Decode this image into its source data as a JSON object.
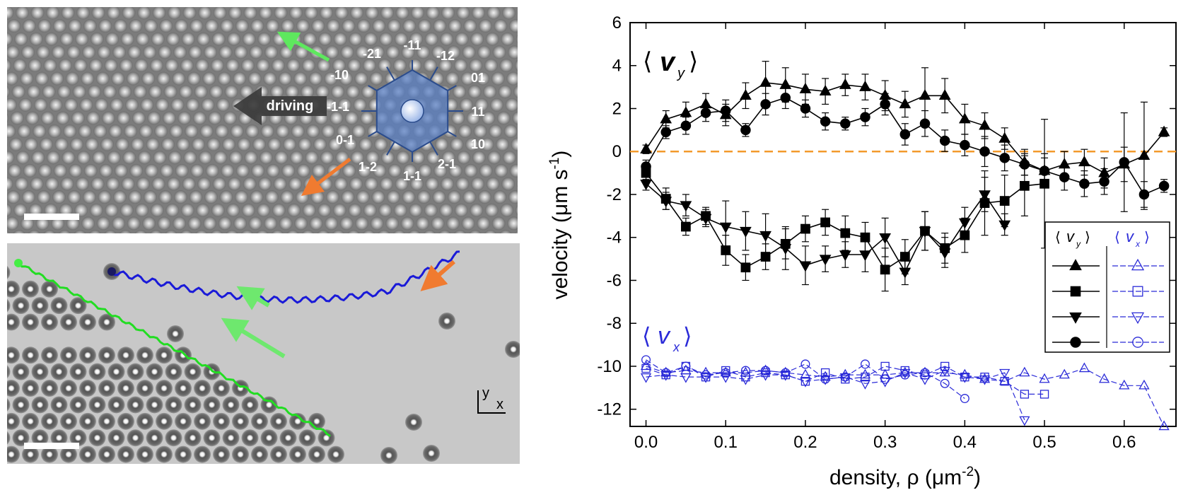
{
  "top_panel": {
    "driving_label": "driving",
    "direction_labels": [
      {
        "text": "-11"
      },
      {
        "text": "-12"
      },
      {
        "text": "01"
      },
      {
        "text": "11"
      },
      {
        "text": "10"
      },
      {
        "text": "2-1"
      },
      {
        "text": "1-1"
      },
      {
        "text": "1-2"
      },
      {
        "text": "0-1"
      },
      {
        "text": "-1-1"
      },
      {
        "text": "-10"
      },
      {
        "text": "-21"
      }
    ],
    "colors": {
      "green_arrow": "#5ee85e",
      "orange_arrow": "#f07b30",
      "hexagon": "#4a6fb0"
    }
  },
  "bottom_panel": {
    "axis_y": "y",
    "axis_x": "x",
    "colors": {
      "blue_track": "#1a1ad8",
      "green_track": "#22dd22"
    }
  },
  "chart_data": {
    "type": "scatter",
    "xlabel": "density, ρ (μm",
    "xlabel_sup": "-2",
    "xlabel_end": ")",
    "ylabel": "velocity (μm s",
    "ylabel_sup": "-1",
    "ylabel_end": ")",
    "xlim": [
      -0.02,
      0.665
    ],
    "ylim": [
      -12.8,
      6
    ],
    "xticks": [
      0.0,
      0.1,
      0.2,
      0.3,
      0.4,
      0.5,
      0.6
    ],
    "xtick_labels": [
      "0.0",
      "0.1",
      "0.2",
      "0.3",
      "0.4",
      "0.5",
      "0.6"
    ],
    "yticks": [
      6,
      4,
      2,
      0,
      -2,
      -4,
      -6,
      -8,
      -10,
      -12
    ],
    "ytick_labels": [
      "6",
      "4",
      "2",
      "0",
      "-2",
      "-4",
      "-6",
      "-8",
      "-10",
      "-12"
    ],
    "zero_line_color": "#f39a2c",
    "annotation_vy": "v",
    "annotation_vy_sub": "y",
    "annotation_vx": "v",
    "annotation_vx_sub": "x",
    "legend": {
      "placement": "right",
      "col1": "v",
      "col1_sub": "y",
      "col2": "v",
      "col2_sub": "x"
    },
    "vy_series": [
      {
        "marker": "triangle-up",
        "x": [
          0,
          0.025,
          0.05,
          0.075,
          0.1,
          0.125,
          0.15,
          0.175,
          0.2,
          0.225,
          0.25,
          0.275,
          0.3,
          0.325,
          0.35,
          0.375,
          0.4,
          0.425,
          0.45,
          0.475,
          0.5,
          0.525,
          0.55,
          0.575,
          0.6,
          0.625,
          0.65
        ],
        "y": [
          0.1,
          1.5,
          1.8,
          2.2,
          1.7,
          2.6,
          3.2,
          3.1,
          2.9,
          2.8,
          3.1,
          3.0,
          2.6,
          2.2,
          2.6,
          2.6,
          1.5,
          1.2,
          0.6,
          -0.5,
          -0.9,
          -0.6,
          -0.5,
          -1.0,
          -0.6,
          -0.2,
          0.9
        ],
        "err": [
          0.2,
          0.4,
          0.5,
          0.5,
          0.5,
          0.6,
          1.0,
          0.8,
          0.7,
          0.6,
          0.5,
          0.6,
          0.7,
          0.6,
          1.3,
          0.8,
          0.7,
          0.6,
          0.5,
          0.6,
          0.8,
          0.6,
          0.6,
          0.7,
          0.8,
          2.5,
          0.2
        ]
      },
      {
        "marker": "square",
        "x": [
          0,
          0.025,
          0.05,
          0.075,
          0.1,
          0.125,
          0.15,
          0.175,
          0.2,
          0.225,
          0.25,
          0.275,
          0.3,
          0.325,
          0.35,
          0.375,
          0.4,
          0.425,
          0.45,
          0.475,
          0.5
        ],
        "y": [
          -1.0,
          -2.2,
          -3.5,
          -3.0,
          -4.6,
          -5.4,
          -4.9,
          -4.3,
          -3.6,
          -3.3,
          -3.8,
          -4.0,
          -5.5,
          -4.9,
          -3.7,
          -4.5,
          -3.9,
          -2.4,
          -2.3,
          -1.6,
          -1.5
        ],
        "err": [
          0.3,
          0.5,
          0.4,
          0.4,
          0.7,
          0.6,
          0.6,
          0.7,
          0.6,
          0.6,
          0.8,
          0.7,
          1.0,
          0.8,
          0.9,
          0.7,
          0.8,
          1.5,
          1.2,
          1.4,
          3.0
        ]
      },
      {
        "marker": "triangle-down",
        "x": [
          0,
          0.025,
          0.05,
          0.075,
          0.1,
          0.125,
          0.15,
          0.175,
          0.2,
          0.225,
          0.25,
          0.275,
          0.3,
          0.325,
          0.35,
          0.375,
          0.4,
          0.425,
          0.45
        ],
        "y": [
          -1.5,
          -2.3,
          -2.5,
          -3.1,
          -3.5,
          -3.7,
          -3.9,
          -4.5,
          -5.3,
          -5.0,
          -4.8,
          -4.8,
          -4.0,
          -5.6,
          -3.7,
          -4.7,
          -3.3,
          -2.0,
          -3.4
        ],
        "err": [
          0.3,
          0.4,
          0.5,
          0.4,
          1.2,
          0.9,
          1.0,
          1.0,
          0.9,
          0.6,
          0.6,
          0.8,
          0.9,
          0.6,
          0.9,
          0.7,
          0.7,
          0.8,
          0.5
        ]
      },
      {
        "marker": "circle",
        "x": [
          0,
          0.025,
          0.05,
          0.075,
          0.1,
          0.125,
          0.15,
          0.175,
          0.2,
          0.225,
          0.25,
          0.275,
          0.3,
          0.325,
          0.35,
          0.375,
          0.4,
          0.425,
          0.45,
          0.475,
          0.5,
          0.525,
          0.55,
          0.575,
          0.6,
          0.625,
          0.65
        ],
        "y": [
          -0.7,
          0.9,
          1.2,
          1.8,
          1.9,
          1.0,
          2.2,
          2.5,
          2.0,
          1.4,
          1.3,
          1.6,
          2.2,
          0.8,
          1.3,
          0.5,
          0.3,
          0.0,
          -0.3,
          -0.6,
          -0.9,
          -1.2,
          -1.5,
          -1.4,
          -0.5,
          -2.0,
          -1.6
        ],
        "err": [
          0.3,
          0.3,
          0.4,
          0.4,
          0.5,
          0.3,
          0.5,
          0.5,
          0.4,
          0.4,
          0.3,
          0.4,
          0.5,
          0.5,
          0.6,
          0.5,
          0.5,
          0.7,
          0.6,
          0.5,
          0.6,
          0.6,
          0.6,
          0.6,
          2.3,
          0.6,
          0.3
        ]
      }
    ],
    "vx_series": [
      {
        "marker": "triangle-up",
        "x": [
          0,
          0.025,
          0.05,
          0.075,
          0.1,
          0.125,
          0.15,
          0.175,
          0.2,
          0.225,
          0.25,
          0.275,
          0.3,
          0.325,
          0.35,
          0.375,
          0.4,
          0.425,
          0.45,
          0.475,
          0.5,
          0.525,
          0.55,
          0.575,
          0.6,
          0.625,
          0.65
        ],
        "y": [
          -10.0,
          -10.3,
          -10.2,
          -10.3,
          -10.3,
          -10.3,
          -10.2,
          -10.3,
          -10.4,
          -10.5,
          -10.4,
          -10.4,
          -10.4,
          -10.3,
          -10.3,
          -10.3,
          -10.4,
          -10.6,
          -10.7,
          -10.3,
          -10.6,
          -10.4,
          -10.1,
          -10.6,
          -10.9,
          -10.9,
          -12.8
        ]
      },
      {
        "marker": "square",
        "x": [
          0,
          0.025,
          0.05,
          0.075,
          0.1,
          0.125,
          0.15,
          0.175,
          0.2,
          0.225,
          0.25,
          0.275,
          0.3,
          0.325,
          0.35,
          0.375,
          0.4,
          0.425,
          0.45,
          0.475,
          0.5
        ],
        "y": [
          -10.1,
          -10.4,
          -10.0,
          -10.5,
          -10.2,
          -10.5,
          -10.3,
          -10.4,
          -10.7,
          -10.3,
          -10.6,
          -10.5,
          -10.0,
          -10.2,
          -10.4,
          -10.0,
          -10.5,
          -10.5,
          -10.7,
          -11.3,
          -11.3
        ]
      },
      {
        "marker": "triangle-down",
        "x": [
          0,
          0.025,
          0.05,
          0.075,
          0.1,
          0.125,
          0.15,
          0.175,
          0.2,
          0.225,
          0.25,
          0.275,
          0.3,
          0.325,
          0.35,
          0.375,
          0.4,
          0.425,
          0.45,
          0.475
        ],
        "y": [
          -10.5,
          -10.4,
          -10.5,
          -10.5,
          -10.5,
          -10.6,
          -10.4,
          -10.4,
          -10.7,
          -10.6,
          -10.5,
          -10.8,
          -10.7,
          -10.3,
          -10.6,
          -10.2,
          -10.5,
          -10.6,
          -10.3,
          -12.5
        ]
      },
      {
        "marker": "circle",
        "x": [
          0,
          0.025,
          0.05,
          0.075,
          0.1,
          0.125,
          0.15,
          0.175,
          0.2,
          0.225,
          0.25,
          0.275,
          0.3,
          0.325,
          0.35,
          0.375,
          0.4
        ],
        "y": [
          -9.7,
          -10.3,
          -10.0,
          -10.4,
          -10.3,
          -10.2,
          -10.2,
          -10.3,
          -9.9,
          -10.6,
          -10.5,
          -9.9,
          -10.6,
          -10.4,
          -10.3,
          -10.8,
          -11.5
        ]
      }
    ],
    "colors": {
      "vy": "#000000",
      "vx": "#2b2bd8"
    }
  }
}
